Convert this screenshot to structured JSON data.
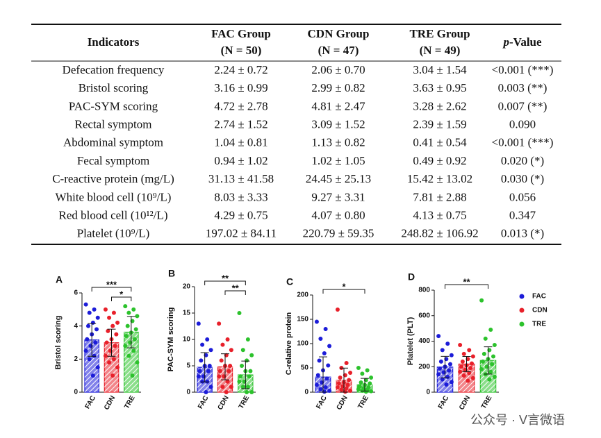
{
  "table": {
    "header": [
      "Indicators",
      [
        "FAC Group",
        "(N = 50)"
      ],
      [
        "CDN Group",
        "(N = 47)"
      ],
      [
        "TRE Group",
        "(N = 49)"
      ],
      "p-Value"
    ],
    "rows": [
      [
        "Defecation frequency",
        "2.24 ± 0.72",
        "2.06 ± 0.70",
        "3.04 ± 1.54",
        "<0.001 (***)"
      ],
      [
        "Bristol scoring",
        "3.16 ± 0.99",
        "2.99 ± 0.82",
        "3.63 ± 0.95",
        "0.003 (**)"
      ],
      [
        "PAC-SYM scoring",
        "4.72 ± 2.78",
        "4.81 ± 2.47",
        "3.28 ± 2.62",
        "0.007 (**)"
      ],
      [
        "Rectal symptom",
        "2.74 ± 1.52",
        "3.09 ± 1.52",
        "2.39 ± 1.59",
        "0.090"
      ],
      [
        "Abdominal symptom",
        "1.04 ± 0.81",
        "1.13 ± 0.82",
        "0.41 ± 0.54",
        "<0.001 (***)"
      ],
      [
        "Fecal symptom",
        "0.94 ± 1.02",
        "1.02 ± 1.05",
        "0.49 ± 0.92",
        "0.020 (*)"
      ],
      [
        "C-reactive protein (mg/L)",
        "31.13 ± 41.58",
        "24.45 ± 25.13",
        "15.42 ± 13.02",
        "0.030 (*)"
      ],
      [
        "White blood cell (10⁹/L)",
        "8.03 ± 3.33",
        "9.27 ± 3.31",
        "7.81 ± 2.88",
        "0.056"
      ],
      [
        "Red blood cell (10¹²/L)",
        "4.29 ± 0.75",
        "4.07 ± 0.80",
        "4.13 ± 0.75",
        "0.347"
      ],
      [
        "Platelet (10⁹/L)",
        "197.02 ± 84.11",
        "220.79 ± 59.35",
        "248.82 ± 106.92",
        "0.013 (*)"
      ]
    ]
  },
  "chart_data": [
    {
      "type": "bar",
      "label": "A",
      "y_label": "Bristol scoring",
      "categories": [
        "FAC",
        "CDN",
        "TRE"
      ],
      "values": [
        3.16,
        2.99,
        3.63
      ],
      "errors": [
        0.99,
        0.82,
        0.95
      ],
      "colors": [
        "#1c1cd8",
        "#e8202a",
        "#2cc22c"
      ],
      "points": [
        [
          5.3,
          5,
          4.8,
          4.5,
          4.2,
          4,
          3.8,
          3.5,
          3.2,
          3,
          2.8,
          2.5,
          2.2,
          2,
          1.5,
          1
        ],
        [
          5,
          4.8,
          4.5,
          4.2,
          4,
          3.7,
          3.5,
          3.2,
          3,
          2.8,
          2.5,
          2.2,
          2,
          1.8,
          1.5,
          1
        ],
        [
          5.2,
          5,
          4.8,
          4.6,
          4.3,
          4,
          3.8,
          3.6,
          3.4,
          3.2,
          3,
          2.8,
          2.5,
          2.2,
          1.8,
          1
        ]
      ],
      "ylim": [
        0,
        6
      ],
      "yticks": [
        0,
        2,
        4,
        6
      ],
      "annotations": [
        {
          "text": "***",
          "from": 0,
          "to": 2
        },
        {
          "text": "*",
          "from": 1,
          "to": 2
        }
      ]
    },
    {
      "type": "bar",
      "label": "B",
      "y_label": "PAC-SYM scoring",
      "categories": [
        "FAC",
        "CDN",
        "TRE"
      ],
      "values": [
        4.72,
        4.81,
        3.28
      ],
      "errors": [
        2.78,
        2.47,
        2.62
      ],
      "colors": [
        "#1c1cd8",
        "#e8202a",
        "#2cc22c"
      ],
      "points": [
        [
          13,
          10,
          9,
          8,
          7,
          6,
          5,
          5,
          4,
          4,
          3,
          3,
          2,
          2,
          1,
          0
        ],
        [
          13,
          10,
          9,
          8,
          7,
          6,
          5,
          5,
          4,
          4,
          3,
          3,
          2,
          1,
          1,
          0
        ],
        [
          15,
          10,
          8,
          7,
          6,
          5,
          4,
          4,
          3,
          3,
          2,
          2,
          1,
          1,
          0,
          0
        ]
      ],
      "ylim": [
        0,
        20
      ],
      "yticks": [
        0,
        5,
        10,
        15,
        20
      ],
      "annotations": [
        {
          "text": "**",
          "from": 0,
          "to": 2
        },
        {
          "text": "**",
          "from": 1,
          "to": 2
        }
      ]
    },
    {
      "type": "bar",
      "label": "C",
      "y_label": "C-relative protein",
      "categories": [
        "FAC",
        "CDN",
        "TRE"
      ],
      "values": [
        31.13,
        24.45,
        15.42
      ],
      "errors": [
        41.58,
        25.13,
        13.02
      ],
      "colors": [
        "#1c1cd8",
        "#e8202a",
        "#2cc22c"
      ],
      "points": [
        [
          145,
          130,
          110,
          95,
          80,
          65,
          55,
          45,
          35,
          28,
          20,
          15,
          10,
          6,
          3,
          1
        ],
        [
          170,
          60,
          50,
          40,
          35,
          30,
          25,
          20,
          18,
          15,
          12,
          10,
          8,
          5,
          3,
          1
        ],
        [
          50,
          45,
          38,
          30,
          25,
          20,
          18,
          15,
          12,
          10,
          8,
          6,
          5,
          3,
          2,
          1
        ]
      ],
      "ylim": [
        0,
        200
      ],
      "yticks": [
        0,
        50,
        100,
        150,
        200
      ],
      "annotations": [
        {
          "text": "*",
          "from": 0,
          "to": 2
        }
      ]
    },
    {
      "type": "bar",
      "label": "D",
      "y_label": "Platelet (PLT)",
      "categories": [
        "FAC",
        "CDN",
        "TRE"
      ],
      "values": [
        197.02,
        220.79,
        248.82
      ],
      "errors": [
        84.11,
        59.35,
        106.92
      ],
      "colors": [
        "#1c1cd8",
        "#e8202a",
        "#2cc22c"
      ],
      "points": [
        [
          440,
          380,
          330,
          290,
          260,
          240,
          220,
          200,
          185,
          170,
          155,
          140,
          120,
          100,
          80,
          60
        ],
        [
          370,
          330,
          300,
          280,
          260,
          240,
          225,
          210,
          200,
          190,
          175,
          160,
          150,
          130,
          110,
          90
        ],
        [
          720,
          490,
          420,
          370,
          330,
          300,
          280,
          260,
          240,
          220,
          200,
          180,
          160,
          140,
          120,
          100
        ]
      ],
      "ylim": [
        0,
        800
      ],
      "yticks": [
        0,
        200,
        400,
        600,
        800
      ],
      "annotations": [
        {
          "text": "**",
          "from": 0,
          "to": 2
        }
      ],
      "legend": true
    }
  ],
  "watermark": "公众号 · V言微语"
}
